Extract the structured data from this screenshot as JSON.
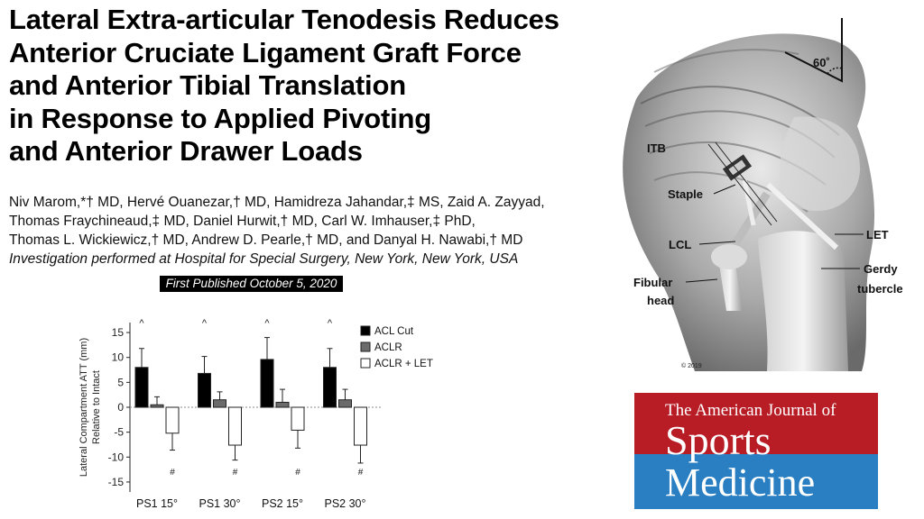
{
  "title_lines": [
    "Lateral Extra-articular Tenodesis Reduces",
    "Anterior Cruciate Ligament Graft Force",
    "and Anterior Tibial Translation",
    "in Response to Applied Pivoting",
    "and Anterior Drawer Loads"
  ],
  "author_lines": [
    "Niv Marom,*† MD, Hervé Ouanezar,† MD, Hamidreza Jahandar,‡ MS, Zaid A. Zayyad,",
    "Thomas Fraychineaud,‡ MD, Daniel Hurwit,† MD, Carl W. Imhauser,‡ PhD,",
    "Thomas L. Wickiewicz,† MD, Andrew D. Pearle,† MD, and Danyal H. Nawabi,† MD"
  ],
  "institution": "Investigation performed at Hospital for Special Surgery, New York, New York, USA",
  "published": "First Published October 5, 2020",
  "chart_data": {
    "type": "bar",
    "categories": [
      "PS1 15°",
      "PS1 30°",
      "PS2 15°",
      "PS2 30°"
    ],
    "ylabel_line1": "Lateral Compartment ATT (mm)",
    "ylabel_line2": "Relative to Intact",
    "ylim": [
      -17,
      17
    ],
    "yticks": [
      -15,
      -10,
      -5,
      0,
      5,
      10,
      15
    ],
    "series": [
      {
        "name": "ACL Cut",
        "color": "#000000",
        "values": [
          8.0,
          6.8,
          9.6,
          8.0
        ],
        "err": [
          3.8,
          3.4,
          4.4,
          3.8
        ]
      },
      {
        "name": "ACLR",
        "color": "#6b6b6b",
        "values": [
          0.5,
          1.5,
          1.0,
          1.5
        ],
        "err": [
          1.6,
          1.6,
          2.6,
          2.1
        ]
      },
      {
        "name": "ACLR + LET",
        "color": "#ffffff",
        "values": [
          -5.2,
          -7.6,
          -4.6,
          -7.6
        ],
        "err": [
          3.4,
          3.0,
          3.6,
          3.6
        ]
      }
    ],
    "annotations_top": [
      "^",
      "^",
      "^",
      "^"
    ],
    "annotations_bottom": [
      "#",
      "#",
      "#",
      "#"
    ],
    "legend": "top-right"
  },
  "figure": {
    "angle_label": "60˚",
    "labels": {
      "itb": "ITB",
      "staple": "Staple",
      "lcl": "LCL",
      "let": "LET",
      "gerdy1": "Gerdy",
      "gerdy2": "tubercle",
      "fib1": "Fibular",
      "fib2": "head"
    },
    "signature": "© 2019"
  },
  "journal": {
    "line1": "The American Journal of",
    "line2": "Sports",
    "line3": "Medicine",
    "top_color": "#b81d26",
    "bottom_color": "#2a7fc2"
  }
}
